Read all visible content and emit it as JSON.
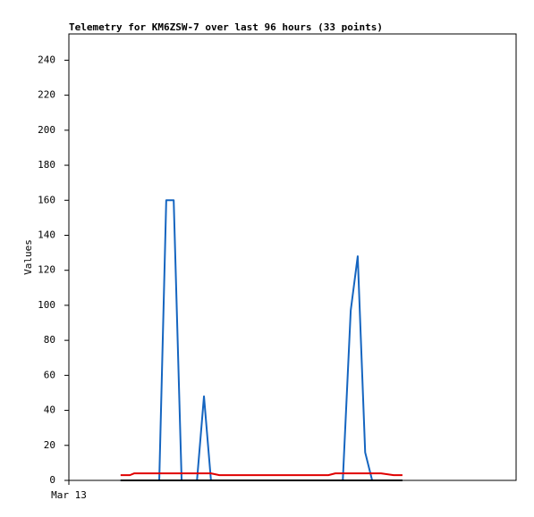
{
  "chart_data": {
    "type": "line",
    "title": "Telemetry for KM6ZSW-7 over last 96 hours (33 points)",
    "y_label": "Values",
    "x": [
      11.1,
      13.1,
      14.0,
      15.9,
      17.9,
      19.4,
      20.9,
      21.7,
      22.5,
      24.2,
      25.9,
      27.5,
      29.0,
      30.5,
      32.3,
      35.1,
      37.1,
      39.0,
      42.8,
      44.7,
      46.7,
      50.5,
      54.3,
      55.7,
      57.2,
      58.8,
      60.5,
      62.0,
      63.6,
      65.1,
      67.0,
      69.7,
      71.6
    ],
    "series": [
      {
        "color": "#1565c0",
        "values": [
          0,
          0,
          0,
          0,
          0,
          0,
          160,
          160,
          160,
          0,
          0,
          0,
          48,
          0,
          0,
          0,
          0,
          0,
          0,
          0,
          0,
          0,
          0,
          0,
          0,
          0,
          97,
          128,
          16,
          0,
          0,
          0,
          0
        ]
      },
      {
        "color": "#000000",
        "values": [
          0,
          0,
          0,
          0,
          0,
          0,
          0,
          0,
          0,
          0,
          0,
          0,
          0,
          0,
          0,
          0,
          0,
          0,
          0,
          0,
          0,
          0,
          0,
          0,
          0,
          0,
          0,
          0,
          0,
          0,
          0,
          0,
          0
        ]
      },
      {
        "color": "#e00000",
        "values": [
          3,
          3,
          4,
          4,
          4,
          4,
          4,
          4,
          4,
          4,
          4,
          4,
          4,
          4,
          3,
          3,
          3,
          3,
          3,
          3,
          3,
          3,
          3,
          3,
          4,
          4,
          4,
          4,
          4,
          4,
          4,
          3,
          3
        ]
      }
    ],
    "xlim": [
      0,
      96
    ],
    "xticks": [
      {
        "value": 0,
        "label": "Mar 13"
      }
    ],
    "ylim": [
      0,
      255
    ],
    "yticks": [
      0,
      20,
      40,
      60,
      80,
      100,
      120,
      140,
      160,
      180,
      200,
      220,
      240
    ]
  }
}
